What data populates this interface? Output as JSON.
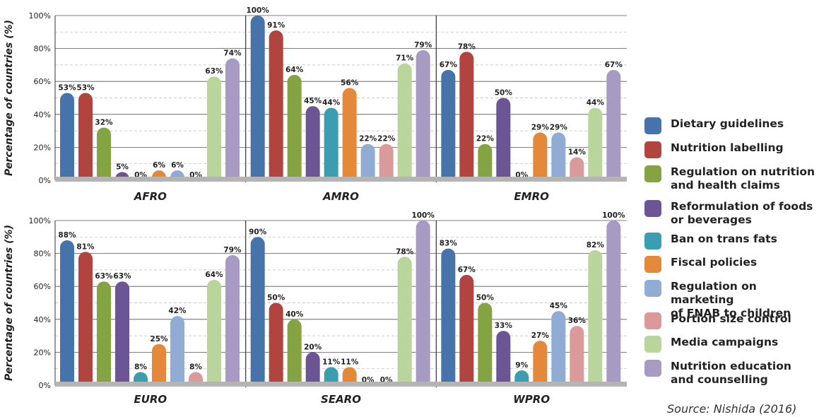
{
  "chart_data": {
    "type": "bar",
    "ylabel": "Percentage of countries (%)",
    "ylim": [
      0,
      100
    ],
    "yticks": [
      "0%",
      "20%",
      "40%",
      "60%",
      "80%",
      "100%"
    ],
    "grid": true,
    "legend_position": "right",
    "series": [
      {
        "name": "Dietary guidelines",
        "color": "#4674aa"
      },
      {
        "name": "Nutrition labelling",
        "color": "#b1443f"
      },
      {
        "name": "Regulation on nutrition\nand health claims",
        "color": "#84a343"
      },
      {
        "name": "Reformulation of foods\nor beverages",
        "color": "#6c5594"
      },
      {
        "name": "Ban on trans fats",
        "color": "#3a9eb0"
      },
      {
        "name": "Fiscal policies",
        "color": "#e4893a"
      },
      {
        "name": "Regulation on marketing\nof FNAB to children",
        "color": "#90acd4"
      },
      {
        "name": "Portion size control",
        "color": "#d99a99"
      },
      {
        "name": "Media campaigns",
        "color": "#bad59b"
      },
      {
        "name": "Nutrition education\nand counselling",
        "color": "#a79ac3"
      }
    ],
    "panels": [
      {
        "region": "AFRO",
        "values": [
          53,
          53,
          32,
          5,
          0,
          6,
          6,
          0,
          63,
          74
        ],
        "labels": [
          "53%",
          "53%",
          "32%",
          "5%",
          "0%",
          "6%",
          "6%",
          "0%",
          "63%",
          "74%"
        ]
      },
      {
        "region": "AMRO",
        "values": [
          100,
          91,
          64,
          45,
          44,
          56,
          22,
          22,
          71,
          79
        ],
        "labels": [
          "100%",
          "91%",
          "64%",
          "45%",
          "44%",
          "56%",
          "22%",
          "22%",
          "71%",
          "79%"
        ]
      },
      {
        "region": "EMRO",
        "values": [
          67,
          78,
          22,
          50,
          0,
          29,
          29,
          14,
          44,
          67
        ],
        "labels": [
          "67%",
          "78%",
          "22%",
          "50%",
          "0%",
          "29%",
          "29%",
          "14%",
          "44%",
          "67%"
        ]
      },
      {
        "region": "EURO",
        "values": [
          88,
          81,
          63,
          63,
          8,
          25,
          42,
          8,
          64,
          79
        ],
        "labels": [
          "88%",
          "81%",
          "63%",
          "63%",
          "8%",
          "25%",
          "42%",
          "8%",
          "64%",
          "79%"
        ]
      },
      {
        "region": "SEARO",
        "values": [
          90,
          50,
          40,
          20,
          11,
          11,
          0,
          0,
          78,
          100
        ],
        "labels": [
          "90%",
          "50%",
          "40%",
          "20%",
          "11%",
          "11%",
          "0%",
          "0%",
          "78%",
          "100%"
        ]
      },
      {
        "region": "WPRO",
        "values": [
          83,
          67,
          50,
          33,
          9,
          27,
          45,
          36,
          82,
          100
        ],
        "labels": [
          "83%",
          "67%",
          "50%",
          "33%",
          "9%",
          "27%",
          "45%",
          "36%",
          "82%",
          "100%"
        ]
      }
    ]
  },
  "source": "Source: Nishida (2016)"
}
